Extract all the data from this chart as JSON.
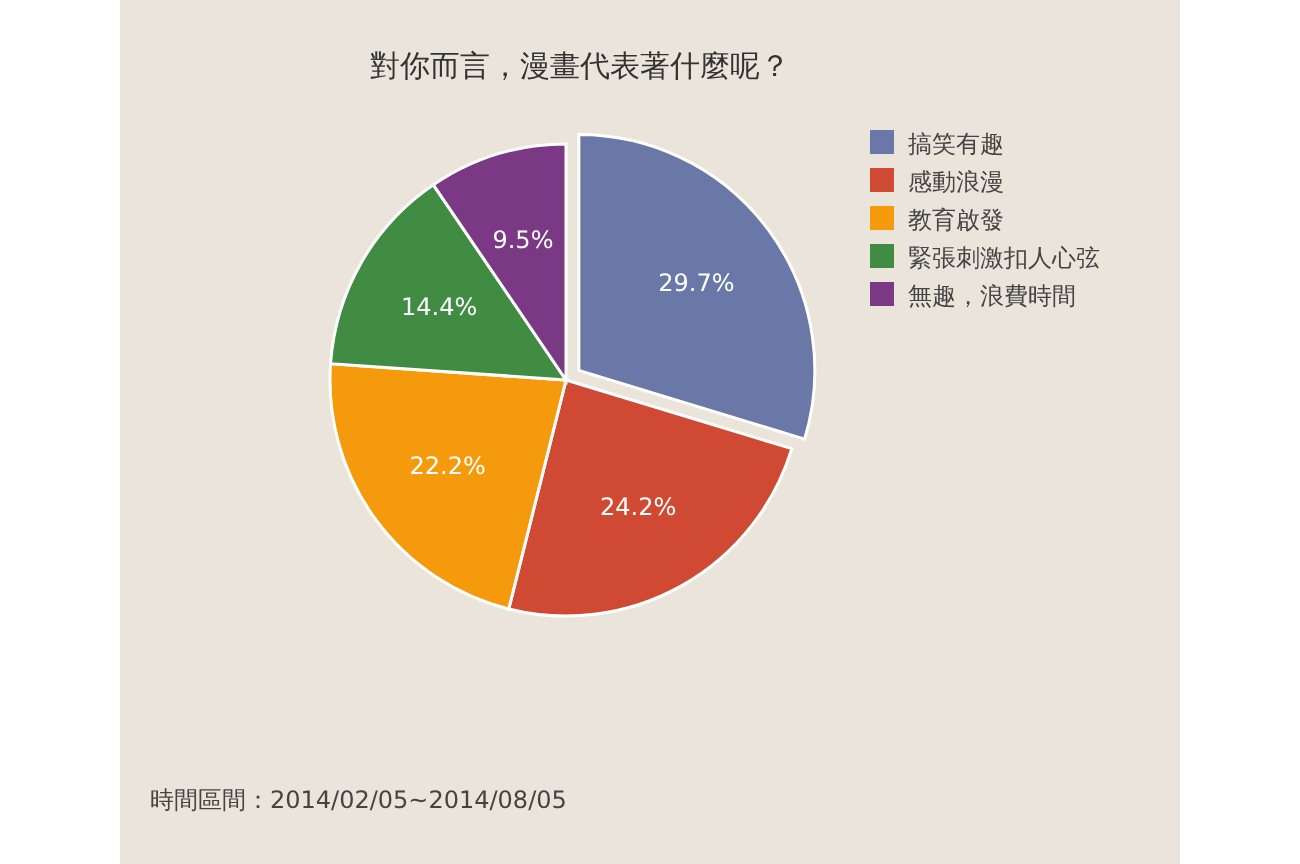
{
  "chart_data": {
    "type": "pie",
    "title": "對你而言，漫畫代表著什麼呢？",
    "categories": [
      "搞笑有趣",
      "感動浪漫",
      "教育啟發",
      "緊張刺激扣人心弦",
      "無趣，浪費時間"
    ],
    "values": [
      29.7,
      24.2,
      22.2,
      14.4,
      9.5
    ],
    "colors": [
      "#6a78a8",
      "#d04a33",
      "#f59a0c",
      "#3f8c42",
      "#7b3985"
    ],
    "value_labels": [
      "29.7%",
      "24.2%",
      "22.2%",
      "14.4%",
      "9.5%"
    ],
    "legend": "top right",
    "annotations": [
      "時間區間：2014/02/05~2014/08/05"
    ]
  }
}
